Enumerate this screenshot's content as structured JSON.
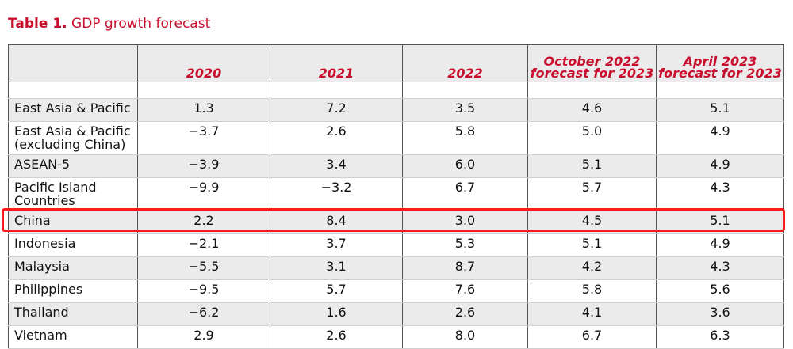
{
  "caption": {
    "label": "Table 1.",
    "title": "GDP growth forecast"
  },
  "table": {
    "headers": [
      "",
      "2020",
      "2021",
      "2022",
      "October 2022 forecast for 2023",
      "April 2023 forecast for 2023"
    ],
    "rows": [
      {
        "label": "East Asia & Pacific",
        "values": [
          "1.3",
          "7.2",
          "3.5",
          "4.6",
          "5.1"
        ]
      },
      {
        "label": "East Asia & Pacific (excluding China)",
        "values": [
          "−3.7",
          "2.6",
          "5.8",
          "5.0",
          "4.9"
        ]
      },
      {
        "label": "ASEAN-5",
        "values": [
          "−3.9",
          "3.4",
          "6.0",
          "5.1",
          "4.9"
        ]
      },
      {
        "label": "Pacific Island Countries",
        "values": [
          "−9.9",
          "−3.2",
          "6.7",
          "5.7",
          "4.3"
        ]
      },
      {
        "label": "China",
        "values": [
          "2.2",
          "8.4",
          "3.0",
          "4.5",
          "5.1"
        ]
      },
      {
        "label": "Indonesia",
        "values": [
          "−2.1",
          "3.7",
          "5.3",
          "5.1",
          "4.9"
        ]
      },
      {
        "label": "Malaysia",
        "values": [
          "−5.5",
          "3.1",
          "8.7",
          "4.2",
          "4.3"
        ]
      },
      {
        "label": "Philippines",
        "values": [
          "−9.5",
          "5.7",
          "7.6",
          "5.8",
          "5.6"
        ]
      },
      {
        "label": "Thailand",
        "values": [
          "−6.2",
          "1.6",
          "2.6",
          "4.1",
          "3.6"
        ]
      },
      {
        "label": "Vietnam",
        "values": [
          "2.9",
          "2.6",
          "8.0",
          "6.7",
          "6.3"
        ]
      }
    ]
  },
  "colors": {
    "accent": "#c8102e",
    "highlight": "#ff1a1a",
    "stripe": "#ebebeb"
  },
  "highlight": {
    "row": "China"
  }
}
